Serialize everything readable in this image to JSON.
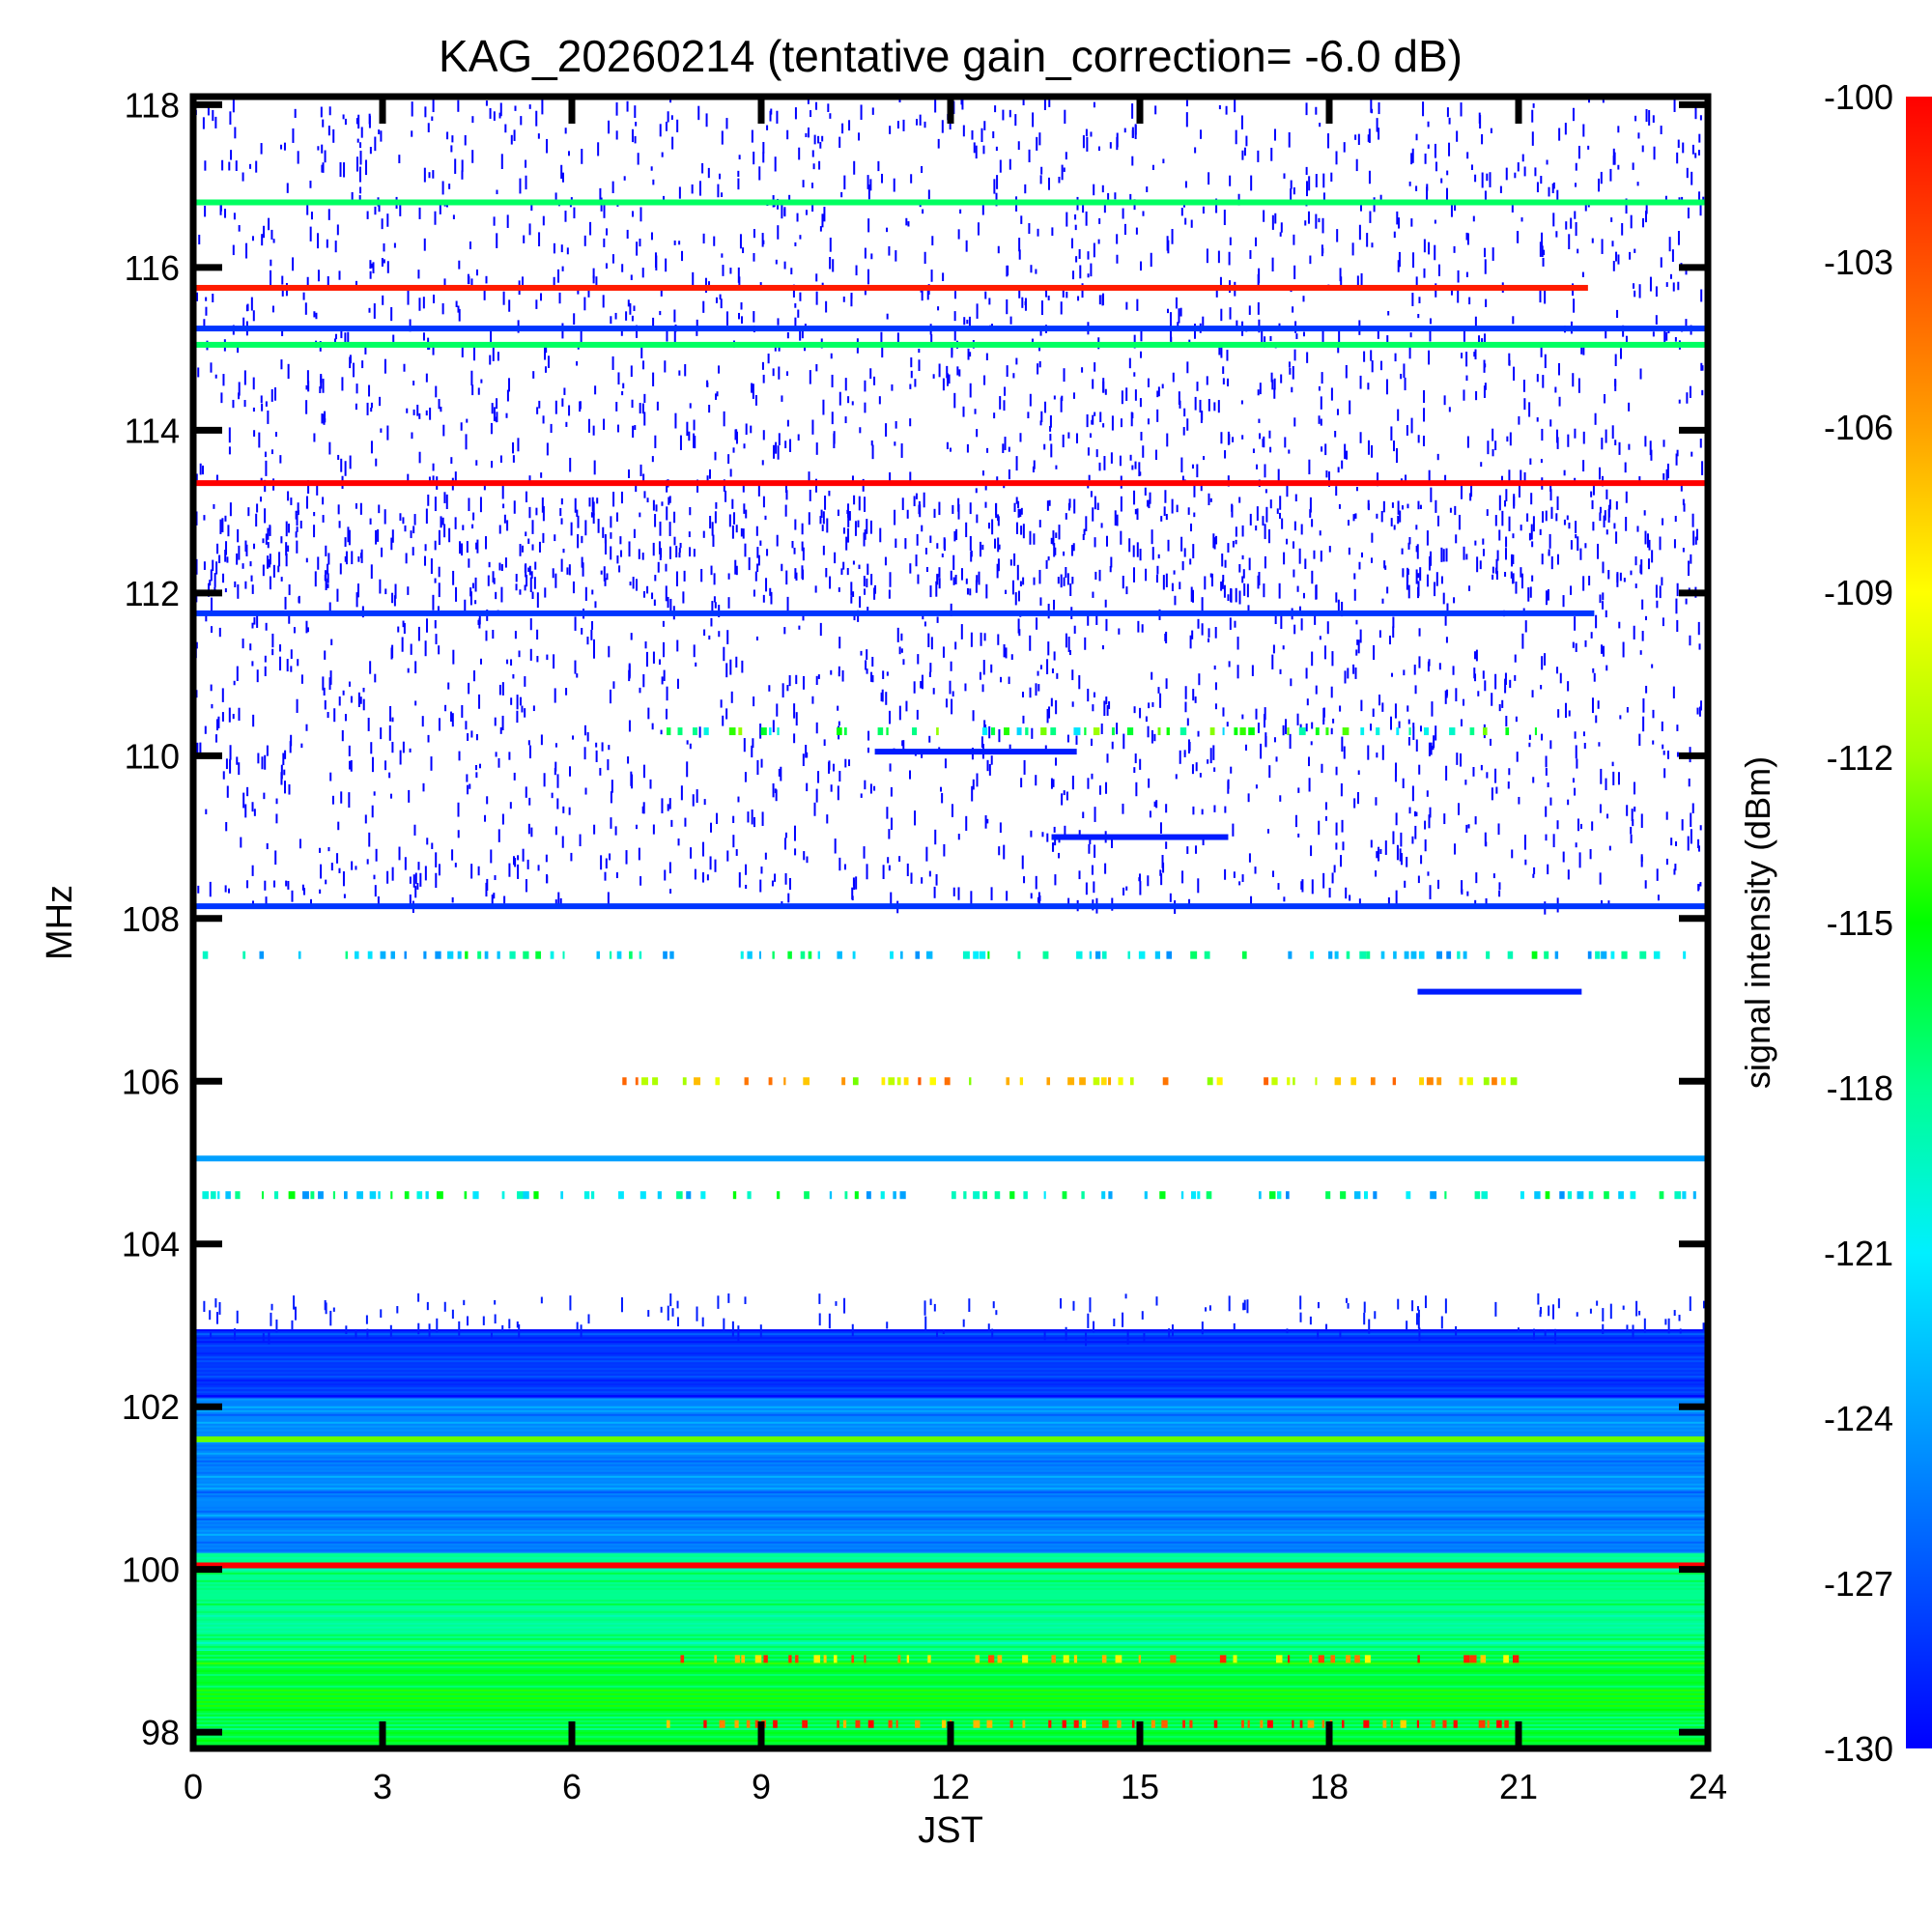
{
  "chart_data": {
    "type": "heatmap",
    "title": "KAG_20260214 (tentative gain_correction= -6.0 dB)",
    "xlabel": "JST",
    "ylabel": "MHz",
    "colorbar_label": "signal intensity (dBm)",
    "xlim": [
      0,
      24
    ],
    "ylim": [
      97.8,
      118.1
    ],
    "x_ticks": [
      0,
      3,
      6,
      9,
      12,
      15,
      18,
      21,
      24
    ],
    "x_tick_labels": [
      "0",
      "3",
      "6",
      "9",
      "12",
      "15",
      "18",
      "21",
      "24"
    ],
    "y_ticks": [
      98,
      100,
      102,
      104,
      106,
      108,
      110,
      112,
      114,
      116,
      118
    ],
    "y_tick_labels": [
      "98",
      "100",
      "102",
      "104",
      "106",
      "108",
      "110",
      "112",
      "114",
      "116",
      "118"
    ],
    "color_scale": {
      "min": -130,
      "max": -100,
      "ticks": [
        -100,
        -103,
        -106,
        -109,
        -112,
        -115,
        -118,
        -121,
        -124,
        -127,
        -130
      ],
      "tick_labels": [
        "-100",
        "-103",
        "-106",
        "-109",
        "-112",
        "-115",
        "-118",
        "-121",
        "-124",
        "-127",
        "-130"
      ],
      "colormap": [
        "#0000ff",
        "#0050ff",
        "#00a0ff",
        "#00f0ff",
        "#00ff90",
        "#00ff00",
        "#a0ff00",
        "#ffff00",
        "#ffa000",
        "#ff5000",
        "#ff0000"
      ]
    },
    "continuous_bands": [
      {
        "freq": 116.8,
        "t_start": 0,
        "t_end": 24,
        "dbm": -117
      },
      {
        "freq": 115.75,
        "t_start": 0,
        "t_end": 22.1,
        "dbm": -101
      },
      {
        "freq": 115.25,
        "t_start": 0,
        "t_end": 24,
        "dbm": -128
      },
      {
        "freq": 115.05,
        "t_start": 0,
        "t_end": 24,
        "dbm": -117
      },
      {
        "freq": 113.35,
        "t_start": 0,
        "t_end": 24,
        "dbm": -100
      },
      {
        "freq": 111.75,
        "t_start": 0,
        "t_end": 22.2,
        "dbm": -128
      },
      {
        "freq": 110.05,
        "t_start": 10.8,
        "t_end": 14.0,
        "dbm": -129
      },
      {
        "freq": 109.0,
        "t_start": 13.6,
        "t_end": 16.4,
        "dbm": -129
      },
      {
        "freq": 108.15,
        "t_start": 0,
        "t_end": 24,
        "dbm": -128
      },
      {
        "freq": 107.1,
        "t_start": 19.4,
        "t_end": 22.0,
        "dbm": -129
      },
      {
        "freq": 105.05,
        "t_start": 0,
        "t_end": 24,
        "dbm": -124
      },
      {
        "freq": 101.6,
        "t_start": 0,
        "t_end": 24,
        "dbm": -113
      },
      {
        "freq": 100.05,
        "t_start": 0,
        "t_end": 24,
        "dbm": -100
      }
    ],
    "intermittent_bands": [
      {
        "freq": 110.3,
        "t_start": 7.5,
        "t_end": 21.5,
        "dbm": -117
      },
      {
        "freq": 107.55,
        "t_start": 0,
        "t_end": 24,
        "dbm": -120
      },
      {
        "freq": 106.0,
        "t_start": 6.8,
        "t_end": 21.3,
        "dbm": -108
      },
      {
        "freq": 104.6,
        "t_start": 0,
        "t_end": 24,
        "dbm": -120
      },
      {
        "freq": 98.9,
        "t_start": 7.5,
        "t_end": 21.0,
        "dbm": -105
      },
      {
        "freq": 98.1,
        "t_start": 7.5,
        "t_end": 21.0,
        "dbm": -103
      }
    ],
    "background_regions": [
      {
        "freq_from": 102.1,
        "freq_to": 102.95,
        "dbm": -128
      },
      {
        "freq_from": 100.2,
        "freq_to": 102.1,
        "dbm": -125
      },
      {
        "freq_from": 99.0,
        "freq_to": 100.2,
        "dbm": -118
      },
      {
        "freq_from": 97.8,
        "freq_to": 99.0,
        "dbm": -116
      }
    ],
    "scatter_regions": [
      {
        "freq_from": 112.0,
        "freq_to": 118.1,
        "dbm": -130
      },
      {
        "freq_from": 108.2,
        "freq_to": 113.2,
        "dbm": -130
      },
      {
        "freq_from": 102.9,
        "freq_to": 103.4,
        "dbm": -129
      }
    ]
  }
}
